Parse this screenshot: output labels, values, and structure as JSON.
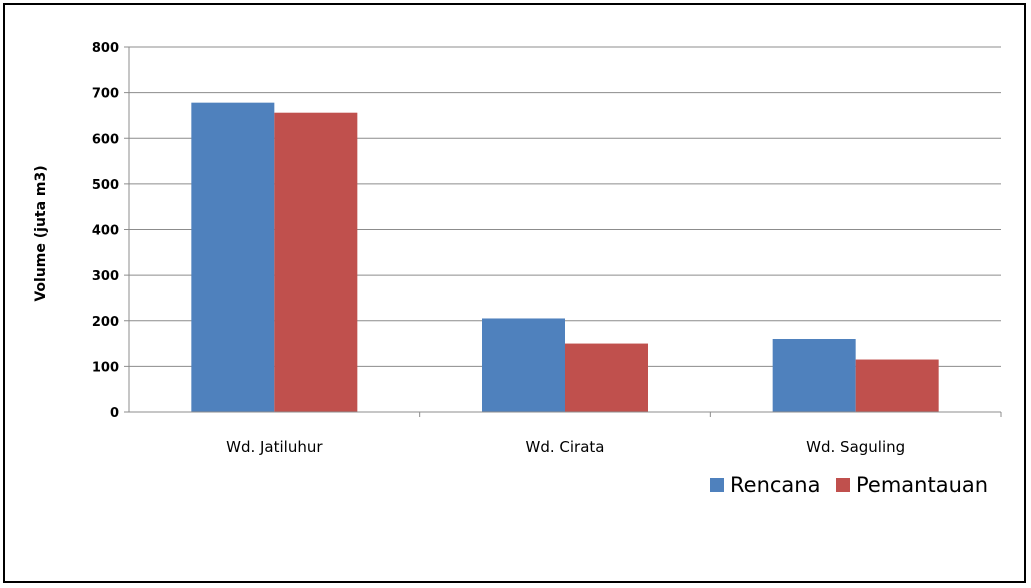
{
  "chart_data": {
    "type": "bar",
    "title": "",
    "xlabel": "",
    "ylabel": "Volume (juta m3)",
    "categories": [
      "Wd. Jatiluhur",
      "Wd. Cirata",
      "Wd. Saguling"
    ],
    "series": [
      {
        "name": "Rencana",
        "values": [
          678,
          205,
          160
        ],
        "color": "#4f81bd"
      },
      {
        "name": "Pemantauan",
        "values": [
          656,
          150,
          115
        ],
        "color": "#c0504d"
      }
    ],
    "ylim": [
      0,
      800
    ],
    "yticks": [
      "0",
      "100",
      "200",
      "300",
      "400",
      "500",
      "600",
      "700",
      "800"
    ],
    "grid": true,
    "legend_position": "bottom-right"
  }
}
